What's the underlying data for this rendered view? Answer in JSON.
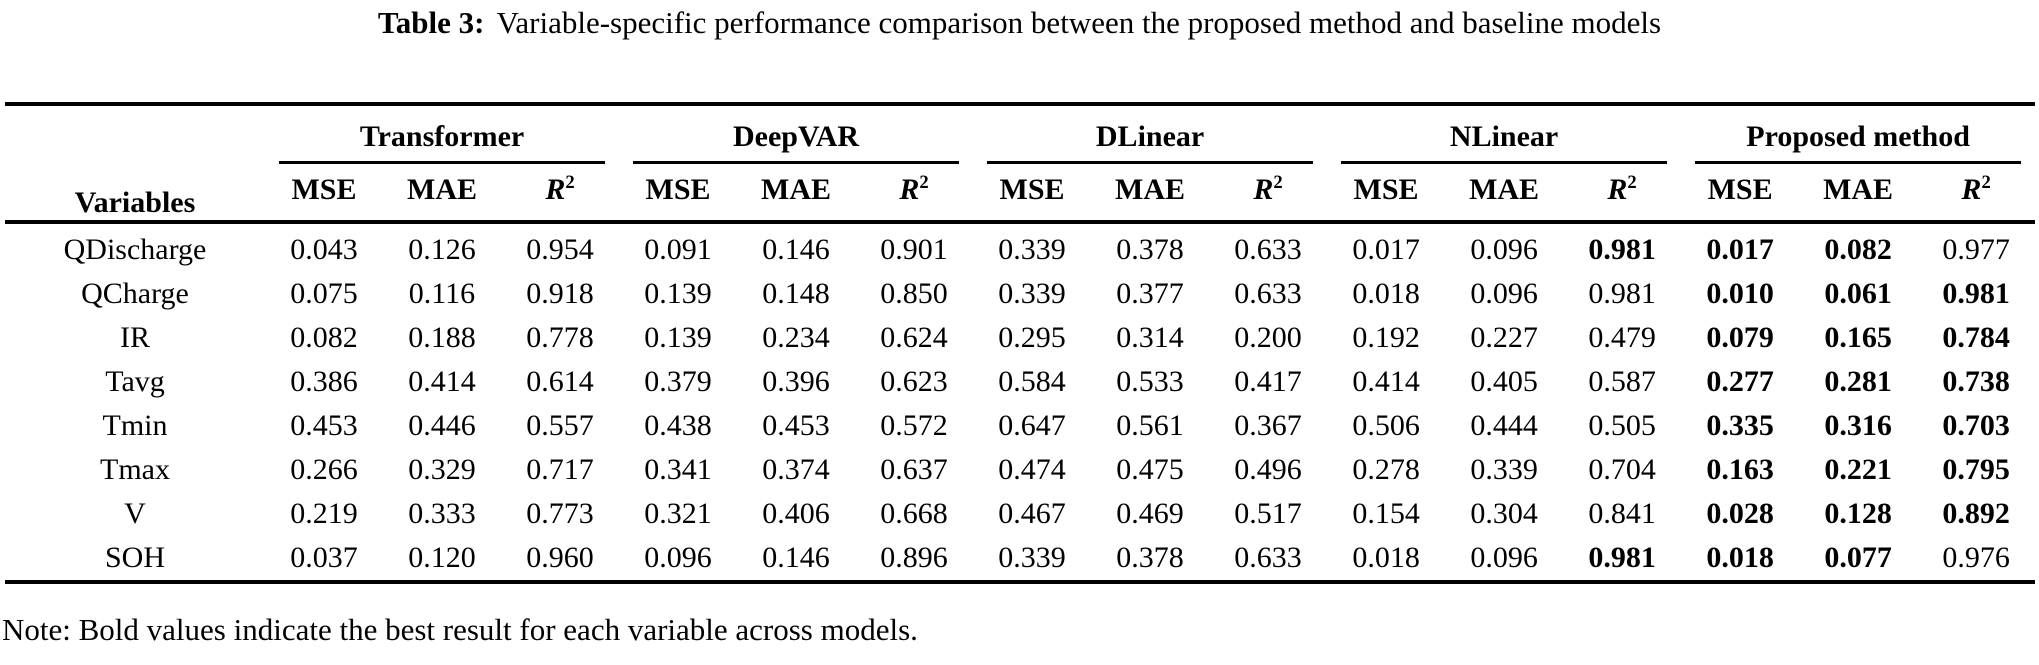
{
  "caption": {
    "label": "Table 3:",
    "text": "Variable-specific performance comparison between the proposed method and baseline models"
  },
  "table": {
    "variables_header": "Variables",
    "groups": [
      {
        "name": "Transformer"
      },
      {
        "name": "DeepVAR"
      },
      {
        "name": "DLinear"
      },
      {
        "name": "NLinear"
      },
      {
        "name": "Proposed method"
      }
    ],
    "metric_labels": [
      "MSE",
      "MAE",
      "R²"
    ],
    "rows": [
      {
        "variable": "QDischarge",
        "cells": [
          {
            "v": "0.043"
          },
          {
            "v": "0.126"
          },
          {
            "v": "0.954"
          },
          {
            "v": "0.091"
          },
          {
            "v": "0.146"
          },
          {
            "v": "0.901"
          },
          {
            "v": "0.339"
          },
          {
            "v": "0.378"
          },
          {
            "v": "0.633"
          },
          {
            "v": "0.017"
          },
          {
            "v": "0.096"
          },
          {
            "v": "0.981",
            "bold": true
          },
          {
            "v": "0.017",
            "bold": true
          },
          {
            "v": "0.082",
            "bold": true
          },
          {
            "v": "0.977"
          }
        ]
      },
      {
        "variable": "QCharge",
        "cells": [
          {
            "v": "0.075"
          },
          {
            "v": "0.116"
          },
          {
            "v": "0.918"
          },
          {
            "v": "0.139"
          },
          {
            "v": "0.148"
          },
          {
            "v": "0.850"
          },
          {
            "v": "0.339"
          },
          {
            "v": "0.377"
          },
          {
            "v": "0.633"
          },
          {
            "v": "0.018"
          },
          {
            "v": "0.096"
          },
          {
            "v": "0.981"
          },
          {
            "v": "0.010",
            "bold": true
          },
          {
            "v": "0.061",
            "bold": true
          },
          {
            "v": "0.981",
            "bold": true
          }
        ]
      },
      {
        "variable": "IR",
        "cells": [
          {
            "v": "0.082"
          },
          {
            "v": "0.188"
          },
          {
            "v": "0.778"
          },
          {
            "v": "0.139"
          },
          {
            "v": "0.234"
          },
          {
            "v": "0.624"
          },
          {
            "v": "0.295"
          },
          {
            "v": "0.314"
          },
          {
            "v": "0.200"
          },
          {
            "v": "0.192"
          },
          {
            "v": "0.227"
          },
          {
            "v": "0.479"
          },
          {
            "v": "0.079",
            "bold": true
          },
          {
            "v": "0.165",
            "bold": true
          },
          {
            "v": "0.784",
            "bold": true
          }
        ]
      },
      {
        "variable": "Tavg",
        "cells": [
          {
            "v": "0.386"
          },
          {
            "v": "0.414"
          },
          {
            "v": "0.614"
          },
          {
            "v": "0.379"
          },
          {
            "v": "0.396"
          },
          {
            "v": "0.623"
          },
          {
            "v": "0.584"
          },
          {
            "v": "0.533"
          },
          {
            "v": "0.417"
          },
          {
            "v": "0.414"
          },
          {
            "v": "0.405"
          },
          {
            "v": "0.587"
          },
          {
            "v": "0.277",
            "bold": true
          },
          {
            "v": "0.281",
            "bold": true
          },
          {
            "v": "0.738",
            "bold": true
          }
        ]
      },
      {
        "variable": "Tmin",
        "cells": [
          {
            "v": "0.453"
          },
          {
            "v": "0.446"
          },
          {
            "v": "0.557"
          },
          {
            "v": "0.438"
          },
          {
            "v": "0.453"
          },
          {
            "v": "0.572"
          },
          {
            "v": "0.647"
          },
          {
            "v": "0.561"
          },
          {
            "v": "0.367"
          },
          {
            "v": "0.506"
          },
          {
            "v": "0.444"
          },
          {
            "v": "0.505"
          },
          {
            "v": "0.335",
            "bold": true
          },
          {
            "v": "0.316",
            "bold": true
          },
          {
            "v": "0.703",
            "bold": true
          }
        ]
      },
      {
        "variable": "Tmax",
        "cells": [
          {
            "v": "0.266"
          },
          {
            "v": "0.329"
          },
          {
            "v": "0.717"
          },
          {
            "v": "0.341"
          },
          {
            "v": "0.374"
          },
          {
            "v": "0.637"
          },
          {
            "v": "0.474"
          },
          {
            "v": "0.475"
          },
          {
            "v": "0.496"
          },
          {
            "v": "0.278"
          },
          {
            "v": "0.339"
          },
          {
            "v": "0.704"
          },
          {
            "v": "0.163",
            "bold": true
          },
          {
            "v": "0.221",
            "bold": true
          },
          {
            "v": "0.795",
            "bold": true
          }
        ]
      },
      {
        "variable": "V",
        "cells": [
          {
            "v": "0.219"
          },
          {
            "v": "0.333"
          },
          {
            "v": "0.773"
          },
          {
            "v": "0.321"
          },
          {
            "v": "0.406"
          },
          {
            "v": "0.668"
          },
          {
            "v": "0.467"
          },
          {
            "v": "0.469"
          },
          {
            "v": "0.517"
          },
          {
            "v": "0.154"
          },
          {
            "v": "0.304"
          },
          {
            "v": "0.841"
          },
          {
            "v": "0.028",
            "bold": true
          },
          {
            "v": "0.128",
            "bold": true
          },
          {
            "v": "0.892",
            "bold": true
          }
        ]
      },
      {
        "variable": "SOH",
        "cells": [
          {
            "v": "0.037"
          },
          {
            "v": "0.120"
          },
          {
            "v": "0.960"
          },
          {
            "v": "0.096"
          },
          {
            "v": "0.146"
          },
          {
            "v": "0.896"
          },
          {
            "v": "0.339"
          },
          {
            "v": "0.378"
          },
          {
            "v": "0.633"
          },
          {
            "v": "0.018"
          },
          {
            "v": "0.096"
          },
          {
            "v": "0.981",
            "bold": true
          },
          {
            "v": "0.018",
            "bold": true
          },
          {
            "v": "0.077",
            "bold": true
          },
          {
            "v": "0.976"
          }
        ]
      }
    ]
  },
  "note": "Note: Bold values indicate the best result for each variable across models."
}
